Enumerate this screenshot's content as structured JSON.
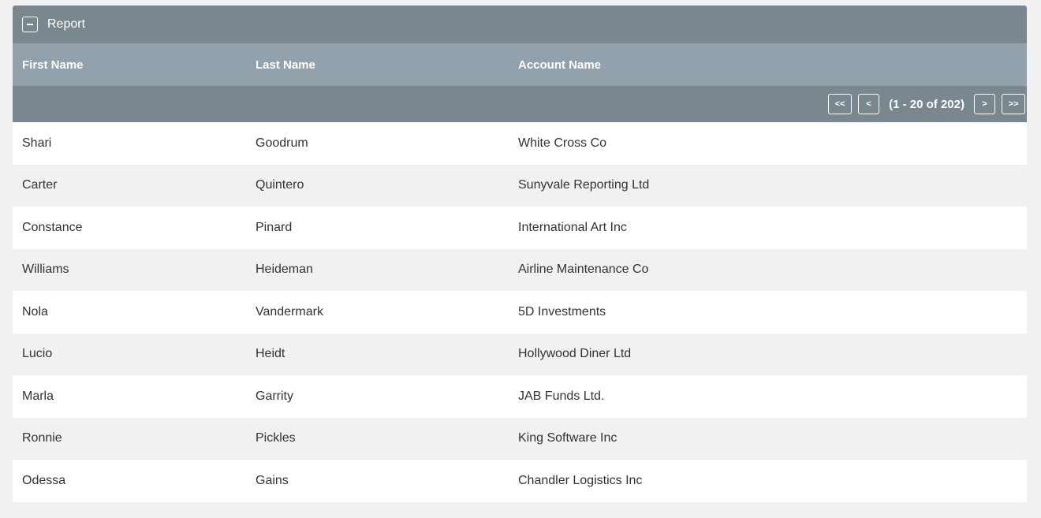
{
  "panel": {
    "title": "Report",
    "collapse_icon": "minus-icon"
  },
  "columns": {
    "first": "First Name",
    "last": "Last Name",
    "account": "Account Name"
  },
  "pagination": {
    "first_label": "<<",
    "prev_label": "<",
    "info": "(1 - 20 of 202)",
    "next_label": ">",
    "last_label": ">>"
  },
  "rows": [
    {
      "first": "Shari",
      "last": "Goodrum",
      "account": "White Cross Co"
    },
    {
      "first": "Carter",
      "last": "Quintero",
      "account": "Sunyvale Reporting Ltd"
    },
    {
      "first": "Constance",
      "last": "Pinard",
      "account": "International Art Inc"
    },
    {
      "first": "Williams",
      "last": "Heideman",
      "account": "Airline Maintenance Co"
    },
    {
      "first": "Nola",
      "last": "Vandermark",
      "account": "5D Investments"
    },
    {
      "first": "Lucio",
      "last": "Heidt",
      "account": "Hollywood Diner Ltd"
    },
    {
      "first": "Marla",
      "last": "Garrity",
      "account": "JAB Funds Ltd."
    },
    {
      "first": "Ronnie",
      "last": "Pickles",
      "account": "King Software Inc"
    },
    {
      "first": "Odessa",
      "last": "Gains",
      "account": "Chandler Logistics Inc"
    }
  ]
}
